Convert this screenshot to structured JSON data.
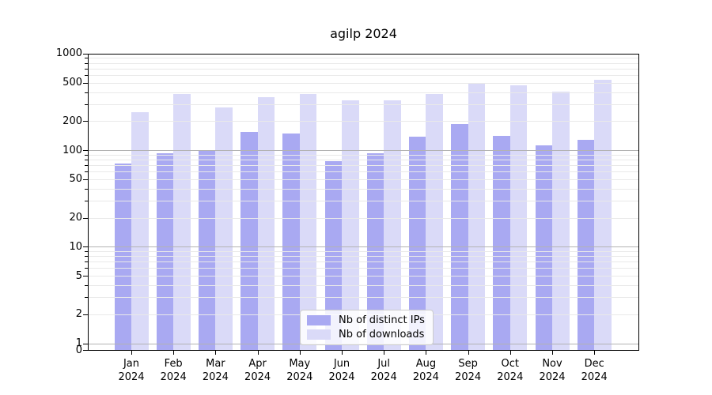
{
  "chart_data": {
    "type": "bar",
    "title": "agilp 2024",
    "year_label": "2024",
    "months": [
      "Jan",
      "Feb",
      "Mar",
      "Apr",
      "May",
      "Jun",
      "Jul",
      "Aug",
      "Sep",
      "Oct",
      "Nov",
      "Dec"
    ],
    "series": [
      {
        "name": "Nb of distinct IPs",
        "color": "#a9a9f2",
        "values": [
          73,
          93,
          100,
          157,
          151,
          77,
          93,
          139,
          188,
          142,
          113,
          129
        ]
      },
      {
        "name": "Nb of downloads",
        "color": "#dadaf8",
        "values": [
          250,
          385,
          280,
          355,
          385,
          330,
          330,
          385,
          490,
          478,
          405,
          540
        ]
      }
    ],
    "y_axis": {
      "scale": "symlog",
      "ylim": [
        0,
        1000
      ],
      "tick_labels": [
        "0",
        "1",
        "2",
        "5",
        "10",
        "20",
        "50",
        "100",
        "200",
        "500",
        "1000"
      ],
      "tick_values": [
        0,
        1,
        2,
        5,
        10,
        20,
        50,
        100,
        200,
        500,
        1000
      ]
    },
    "grid": "both",
    "legend_position": "bottom-center",
    "colors": {
      "major_grid": "#b3b3b3",
      "minor_grid": "#e9e9e9",
      "axis": "#000000",
      "background": "#ffffff"
    }
  }
}
